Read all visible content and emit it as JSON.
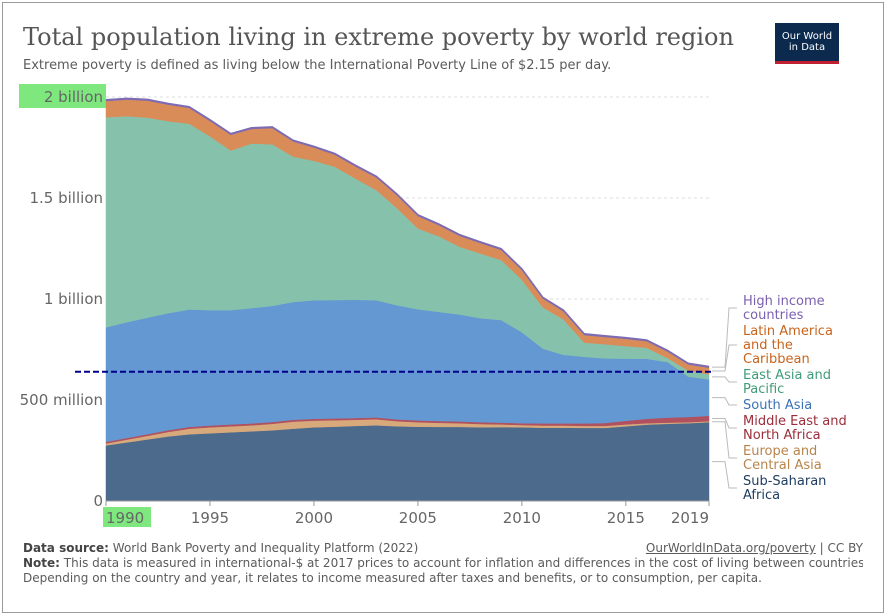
{
  "title": "Total population living in extreme poverty by world region",
  "subtitle": "Extreme poverty is defined as living below the International Poverty Line of $2.15 per day.",
  "logo": {
    "line1": "Our World",
    "line2": "in Data"
  },
  "footer": {
    "source_label": "Data source:",
    "source_text": "World Bank Poverty and Inequality Platform (2022)",
    "link_text": "OurWorldInData.org/poverty",
    "license": "| CC BY",
    "note_label": "Note:",
    "note_line1": "This data is measured in international-$ at 2017 prices to account for inflation and differences in the cost of living between countries.",
    "note_line2": "Depending on the country and year, it relates to income measured after taxes and benefits, or to consumption, per capita."
  },
  "chart_data": {
    "type": "area",
    "stacked": true,
    "title": "Total population living in extreme poverty by world region",
    "x": [
      1990,
      1991,
      1992,
      1993,
      1994,
      1995,
      1996,
      1997,
      1998,
      1999,
      2000,
      2001,
      2002,
      2003,
      2004,
      2005,
      2006,
      2007,
      2008,
      2009,
      2010,
      2011,
      2012,
      2013,
      2014,
      2015,
      2016,
      2017,
      2018,
      2019
    ],
    "ylim": [
      0,
      2000000000
    ],
    "xlim": [
      1990,
      2019
    ],
    "y_ticks": [
      {
        "value": 0,
        "label": "0"
      },
      {
        "value": 500000000,
        "label": "500 million"
      },
      {
        "value": 1000000000,
        "label": "1 billion"
      },
      {
        "value": 1500000000,
        "label": "1.5 billion"
      },
      {
        "value": 2000000000,
        "label": "2 billion"
      }
    ],
    "x_ticks": [
      {
        "value": 1990,
        "label": "1990"
      },
      {
        "value": 1995,
        "label": "1995"
      },
      {
        "value": 2000,
        "label": "2000"
      },
      {
        "value": 2005,
        "label": "2005"
      },
      {
        "value": 2010,
        "label": "2010"
      },
      {
        "value": 2015,
        "label": "2015"
      },
      {
        "value": 2019,
        "label": "2019"
      }
    ],
    "highlighted_ticks": [
      "2 billion",
      "1990"
    ],
    "highlight_color": "#7ee87e",
    "reference_line": {
      "value": 640000000,
      "style": "dashed",
      "color": "#00008b"
    },
    "series": [
      {
        "name": "Sub-Saharan Africa",
        "color": "#4c6a8c",
        "values": [
          275,
          290,
          305,
          320,
          330,
          335,
          340,
          345,
          350,
          358,
          365,
          368,
          372,
          375,
          370,
          368,
          367,
          367,
          365,
          366,
          365,
          363,
          363,
          362,
          362,
          370,
          378,
          382,
          385,
          390
        ]
      },
      {
        "name": "Europe and Central Asia",
        "color": "#d7a97b",
        "values": [
          10,
          14,
          18,
          22,
          28,
          30,
          30,
          30,
          32,
          35,
          33,
          32,
          30,
          30,
          25,
          22,
          20,
          18,
          16,
          13,
          11,
          11,
          11,
          10,
          10,
          9,
          7,
          6,
          5,
          5
        ]
      },
      {
        "name": "Middle East and North Africa",
        "color": "#b1505e",
        "values": [
          8,
          8,
          8,
          9,
          9,
          9,
          9,
          9,
          9,
          9,
          9,
          9,
          9,
          9,
          9,
          9,
          9,
          9,
          9,
          9,
          9,
          10,
          10,
          12,
          14,
          18,
          22,
          25,
          26,
          27
        ]
      },
      {
        "name": "South Asia",
        "color": "#6498d2",
        "values": [
          567,
          573,
          577,
          579,
          581,
          571,
          566,
          571,
          575,
          583,
          587,
          586,
          585,
          580,
          565,
          550,
          540,
          530,
          515,
          508,
          450,
          371,
          340,
          330,
          320,
          308,
          297,
          275,
          200,
          180
        ]
      },
      {
        "name": "East Asia and Pacific",
        "color": "#86c2ab",
        "values": [
          1040,
          1020,
          990,
          950,
          920,
          860,
          790,
          815,
          800,
          720,
          690,
          660,
          600,
          545,
          480,
          400,
          375,
          335,
          320,
          297,
          260,
          204,
          175,
          70,
          70,
          62,
          55,
          20,
          30,
          25
        ]
      },
      {
        "name": "Latin America and the Caribbean",
        "color": "#da8c58",
        "values": [
          80,
          82,
          84,
          82,
          78,
          76,
          78,
          72,
          80,
          75,
          66,
          60,
          60,
          63,
          64,
          62,
          55,
          54,
          52,
          50,
          48,
          44,
          40,
          38,
          36,
          36,
          32,
          32,
          30,
          33
        ]
      },
      {
        "name": "High income countries",
        "color": "#7d6bb3",
        "values": [
          6,
          6,
          6,
          6,
          6,
          6,
          6,
          6,
          6,
          6,
          6,
          6,
          6,
          6,
          6,
          6,
          6,
          6,
          6,
          6,
          6,
          6,
          6,
          6,
          6,
          6,
          6,
          6,
          6,
          6
        ]
      }
    ],
    "value_unit_multiplier": 1000000,
    "legend": [
      {
        "lines": [
          "High income",
          "countries"
        ],
        "color": "#7b5fb0"
      },
      {
        "lines": [
          "Latin America",
          "and the",
          "Caribbean"
        ],
        "color": "#c8641c"
      },
      {
        "lines": [
          "East Asia and",
          "Pacific"
        ],
        "color": "#3f9c78"
      },
      {
        "lines": [
          "South Asia"
        ],
        "color": "#3a72b8"
      },
      {
        "lines": [
          "Middle East and",
          "North Africa"
        ],
        "color": "#9b2d3a"
      },
      {
        "lines": [
          "Europe and",
          "Central Asia"
        ],
        "color": "#b8844c"
      },
      {
        "lines": [
          "Sub-Saharan",
          "Africa"
        ],
        "color": "#1d3c5e"
      }
    ]
  }
}
